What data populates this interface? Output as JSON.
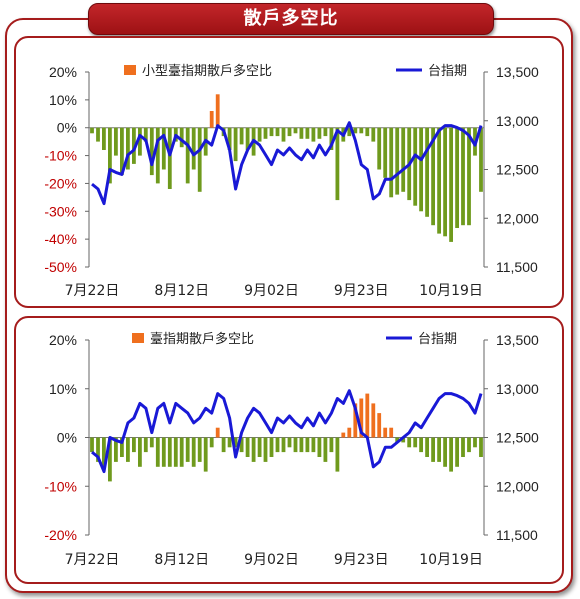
{
  "page_title": "散戶多空比",
  "colors": {
    "bar_negative": "#6f9a1d",
    "bar_positive": "#ef6f1e",
    "index_line": "#1919d6",
    "negative_tick": "#c00000",
    "frame": "#a51c1c"
  },
  "chart_data": [
    {
      "type": "bar+line",
      "legend": {
        "bar": "小型臺指期散戶多空比",
        "line": "台指期"
      },
      "left_axis": {
        "ticks": [
          "20%",
          "10%",
          "0%",
          "-10%",
          "-20%",
          "-30%",
          "-40%",
          "-50%"
        ],
        "ylim": [
          -50,
          20
        ]
      },
      "right_axis": {
        "ticks": [
          "13,500",
          "13,000",
          "12,500",
          "12,000",
          "11,500"
        ],
        "ylim": [
          11500,
          13500
        ]
      },
      "x_ticks": [
        "7月22日",
        "8月12日",
        "9月02日",
        "9月23日",
        "10月19日"
      ],
      "x_tick_index": [
        0,
        15,
        30,
        45,
        60
      ],
      "series": [
        {
          "name": "小型臺指期散戶多空比",
          "axis": "left",
          "values": [
            -2,
            -5,
            -8,
            -20,
            -10,
            -17,
            -15,
            -13,
            -10,
            -5,
            -17,
            -20,
            -15,
            -22,
            -5,
            -7,
            -20,
            -15,
            -23,
            -10,
            6,
            12,
            -3,
            -8,
            -12,
            -6,
            -8,
            -10,
            -5,
            -4,
            -3,
            -3,
            -5,
            -3,
            -2,
            -4,
            -4,
            -5,
            -4,
            -3,
            -8,
            -26,
            -5,
            -3,
            -2,
            -2,
            -3,
            -5,
            -15,
            -18,
            -25,
            -24,
            -23,
            -26,
            -28,
            -30,
            -32,
            -35,
            -38,
            -39,
            -41,
            -36,
            -35,
            -35,
            -10,
            -23
          ]
        },
        {
          "name": "台指期",
          "axis": "right",
          "values": [
            12350,
            12300,
            12150,
            12500,
            12470,
            12450,
            12650,
            12700,
            12850,
            12800,
            12550,
            12800,
            12850,
            12650,
            12850,
            12800,
            12750,
            12650,
            12700,
            12800,
            12750,
            12950,
            12900,
            12700,
            12300,
            12550,
            12700,
            12800,
            12750,
            12650,
            12550,
            12700,
            12650,
            12720,
            12650,
            12600,
            12700,
            12620,
            12750,
            12650,
            12750,
            12900,
            12850,
            12980,
            12800,
            12550,
            12500,
            12200,
            12250,
            12400,
            12400,
            12450,
            12500,
            12550,
            12650,
            12600,
            12700,
            12800,
            12900,
            12950,
            12950,
            12930,
            12900,
            12850,
            12750,
            12950
          ]
        }
      ]
    },
    {
      "type": "bar+line",
      "legend": {
        "bar": "臺指期散戶多空比",
        "line": "台指期"
      },
      "left_axis": {
        "ticks": [
          "20%",
          "10%",
          "0%",
          "-10%",
          "-20%"
        ],
        "ylim": [
          -20,
          20
        ]
      },
      "right_axis": {
        "ticks": [
          "13,500",
          "13,000",
          "12,500",
          "12,000",
          "11,500"
        ],
        "ylim": [
          11500,
          13500
        ]
      },
      "x_ticks": [
        "7月22日",
        "8月12日",
        "9月02日",
        "9月23日",
        "10月19日"
      ],
      "x_tick_index": [
        0,
        15,
        30,
        45,
        60
      ],
      "series": [
        {
          "name": "臺指期散戶多空比",
          "axis": "left",
          "values": [
            -3,
            -5,
            -6,
            -9,
            -5,
            -4,
            -5,
            -3,
            -6,
            -3,
            -2,
            -6,
            -6,
            -6,
            -6,
            -6,
            -5,
            -6,
            -5,
            -7,
            -2,
            2,
            -3,
            -2,
            -2,
            -3,
            -4,
            -5,
            -4,
            -5,
            -4,
            -3,
            -3,
            -2,
            -3,
            -3,
            -3,
            -3,
            -4,
            -5,
            -3,
            -7,
            1,
            2,
            7,
            8,
            9,
            7,
            5,
            2,
            2,
            -1,
            -1,
            -2,
            -2,
            -3,
            -4,
            -5,
            -5,
            -6,
            -7,
            -6,
            -4,
            -3,
            -2,
            -4
          ]
        },
        {
          "name": "台指期",
          "axis": "right",
          "values": [
            12350,
            12300,
            12150,
            12500,
            12470,
            12450,
            12650,
            12700,
            12850,
            12800,
            12550,
            12800,
            12850,
            12650,
            12850,
            12800,
            12750,
            12650,
            12700,
            12800,
            12750,
            12950,
            12900,
            12700,
            12300,
            12550,
            12700,
            12800,
            12750,
            12650,
            12550,
            12700,
            12650,
            12720,
            12650,
            12600,
            12700,
            12620,
            12750,
            12650,
            12750,
            12900,
            12850,
            12980,
            12800,
            12550,
            12500,
            12200,
            12250,
            12400,
            12400,
            12450,
            12500,
            12550,
            12650,
            12600,
            12700,
            12800,
            12900,
            12950,
            12950,
            12930,
            12900,
            12850,
            12750,
            12950
          ]
        }
      ]
    }
  ]
}
